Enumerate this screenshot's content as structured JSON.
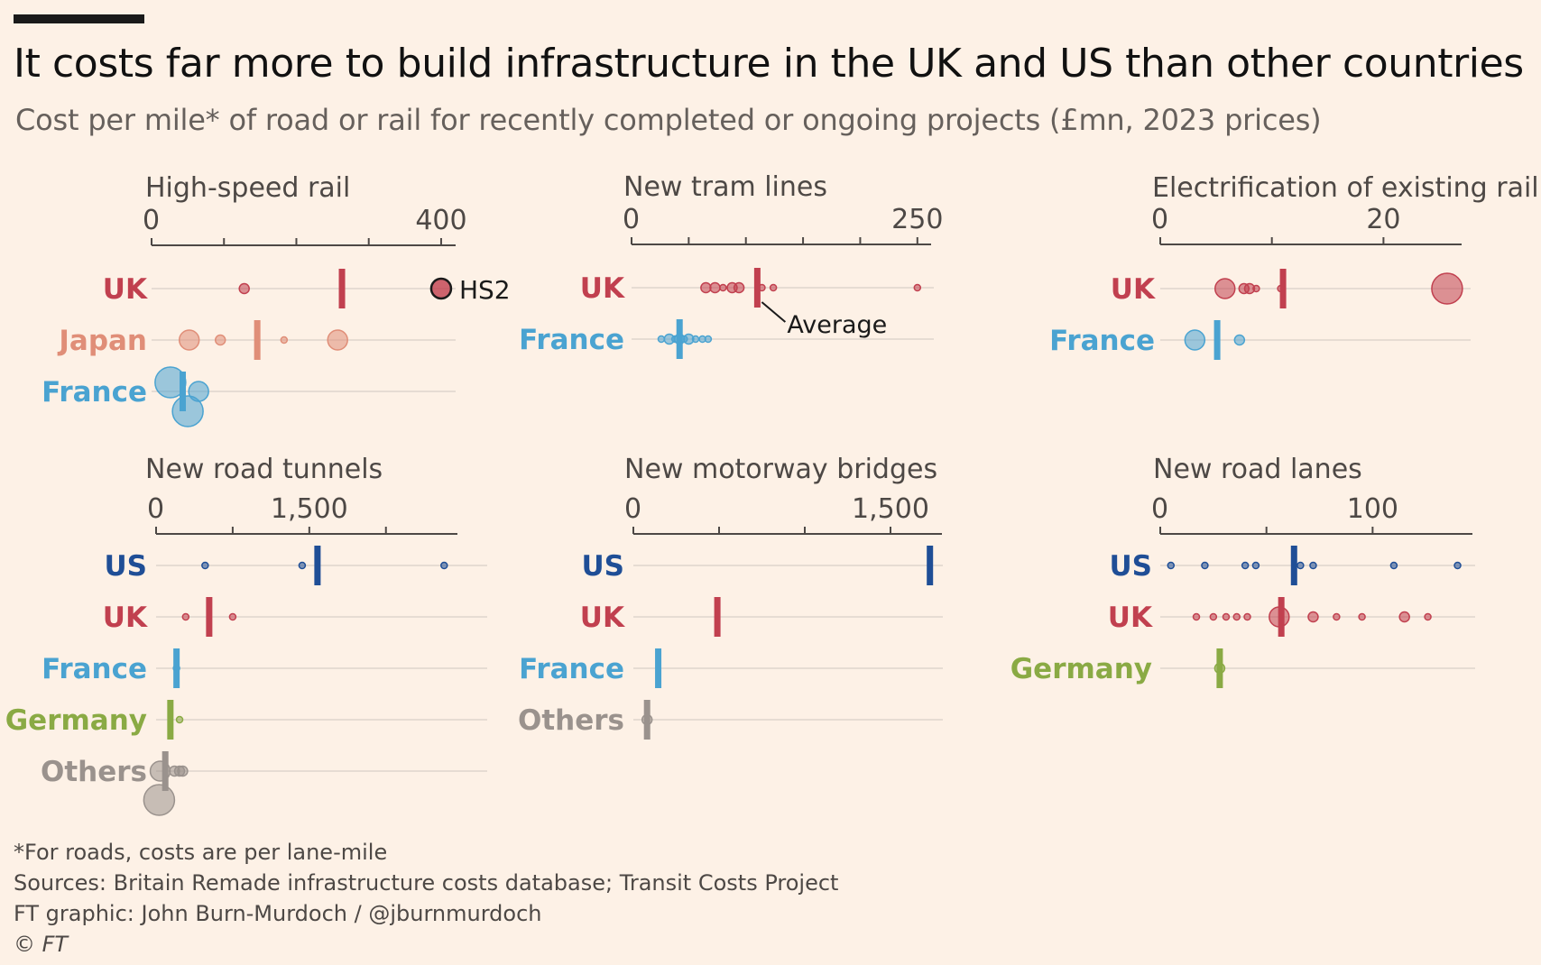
{
  "title": "It costs far more to build infrastructure in the UK and US than other countries",
  "subtitle": "Cost per mile* of road or rail for recently completed or ongoing projects (£mn, 2023 prices)",
  "footnotes": {
    "note": "*For roads, costs are per lane-mile",
    "sources": "Sources: Britain Remade infrastructure costs database; Transit Costs Project",
    "credit": "FT graphic: John Burn-Murdoch / @jburnmurdoch",
    "copyright": "© FT"
  },
  "colors": {
    "UK": "#c1404f",
    "US": "#1f4e96",
    "Japan": "#e08e78",
    "France": "#4aa3d1",
    "Germany": "#8aaa44",
    "Others": "#9a928d",
    "axis": "#4d4845",
    "background": "#fdf1e6"
  },
  "chart_data": [
    {
      "type": "scatter",
      "title": "High-speed rail",
      "xlim": [
        0,
        420
      ],
      "ticks": [
        0,
        100,
        200,
        300,
        400
      ],
      "tick_labels": [
        "0",
        "",
        "",
        "",
        "400"
      ],
      "annotation": {
        "text": "HS2",
        "country": "UK",
        "x": 400
      },
      "series": [
        {
          "name": "UK",
          "average": 263,
          "points": [
            {
              "x": 128,
              "size": "s"
            },
            {
              "x": 400,
              "size": "m",
              "highlight": true
            }
          ]
        },
        {
          "name": "Japan",
          "average": 146,
          "points": [
            {
              "x": 52,
              "size": "m"
            },
            {
              "x": 95,
              "size": "s"
            },
            {
              "x": 183,
              "size": "xs"
            },
            {
              "x": 257,
              "size": "m"
            }
          ]
        },
        {
          "name": "France",
          "average": 43,
          "points": [
            {
              "x": 26,
              "size": "l"
            },
            {
              "x": 65,
              "size": "m"
            },
            {
              "x": 50,
              "size": "l"
            }
          ]
        }
      ]
    },
    {
      "type": "scatter",
      "title": "New tram lines",
      "xlim": [
        0,
        262
      ],
      "ticks": [
        0,
        50,
        100,
        150,
        200,
        250
      ],
      "tick_labels": [
        "0",
        "",
        "",
        "",
        "",
        "250"
      ],
      "annotation": {
        "text": "Average",
        "country": "UK",
        "x": 110
      },
      "series": [
        {
          "name": "UK",
          "average": 110,
          "points": [
            {
              "x": 65,
              "size": "s"
            },
            {
              "x": 73,
              "size": "s"
            },
            {
              "x": 80,
              "size": "xs"
            },
            {
              "x": 88,
              "size": "s"
            },
            {
              "x": 94,
              "size": "s"
            },
            {
              "x": 114,
              "size": "xs"
            },
            {
              "x": 124,
              "size": "xs"
            },
            {
              "x": 250,
              "size": "xs"
            }
          ]
        },
        {
          "name": "France",
          "average": 42,
          "points": [
            {
              "x": 26,
              "size": "xs"
            },
            {
              "x": 33,
              "size": "s"
            },
            {
              "x": 38,
              "size": "xs"
            },
            {
              "x": 42,
              "size": "s"
            },
            {
              "x": 46,
              "size": "xs"
            },
            {
              "x": 50,
              "size": "s"
            },
            {
              "x": 56,
              "size": "xs"
            },
            {
              "x": 62,
              "size": "xs"
            },
            {
              "x": 67,
              "size": "xs"
            }
          ]
        }
      ]
    },
    {
      "type": "scatter",
      "title": "Electrification of existing rail",
      "xlim": [
        0,
        27
      ],
      "ticks": [
        0,
        10,
        20
      ],
      "tick_labels": [
        "0",
        "20"
      ],
      "tick_label_values": [
        0,
        20
      ],
      "series": [
        {
          "name": "UK",
          "average": 11,
          "points": [
            {
              "x": 5.8,
              "size": "m"
            },
            {
              "x": 7.5,
              "size": "s"
            },
            {
              "x": 8,
              "size": "s"
            },
            {
              "x": 8.6,
              "size": "xs"
            },
            {
              "x": 10.8,
              "size": "xs"
            },
            {
              "x": 25.7,
              "size": "l"
            }
          ]
        },
        {
          "name": "France",
          "average": 5.1,
          "points": [
            {
              "x": 3.1,
              "size": "m"
            },
            {
              "x": 7.1,
              "size": "s"
            }
          ]
        }
      ]
    },
    {
      "type": "scatter",
      "title": "New road tunnels",
      "xlim": [
        0,
        2950
      ],
      "ticks": [
        0,
        750,
        1500,
        2250
      ],
      "tick_labels": [
        "0",
        "",
        "1,500",
        ""
      ],
      "series": [
        {
          "name": "US",
          "average": 1580,
          "points": [
            {
              "x": 480,
              "size": "xs"
            },
            {
              "x": 1430,
              "size": "xs"
            },
            {
              "x": 2820,
              "size": "xs"
            }
          ]
        },
        {
          "name": "UK",
          "average": 520,
          "points": [
            {
              "x": 290,
              "size": "xs"
            },
            {
              "x": 750,
              "size": "xs"
            }
          ]
        },
        {
          "name": "France",
          "average": 200,
          "points": [
            {
              "x": 200,
              "size": "xs"
            }
          ]
        },
        {
          "name": "Germany",
          "average": 140,
          "points": [
            {
              "x": 230,
              "size": "xs"
            }
          ]
        },
        {
          "name": "Others",
          "average": 90,
          "points": [
            {
              "x": 40,
              "size": "m"
            },
            {
              "x": 180,
              "size": "s"
            },
            {
              "x": 260,
              "size": "s"
            },
            {
              "x": 230,
              "size": "s"
            },
            {
              "x": 30,
              "size": "l"
            }
          ]
        }
      ]
    },
    {
      "type": "scatter",
      "title": "New motorway bridges",
      "xlim": [
        0,
        1800
      ],
      "ticks": [
        0,
        500,
        1000,
        1500
      ],
      "tick_labels": [
        "0",
        "",
        "",
        "1,500"
      ],
      "series": [
        {
          "name": "US",
          "average": 1730,
          "points": []
        },
        {
          "name": "UK",
          "average": 490,
          "points": []
        },
        {
          "name": "France",
          "average": 145,
          "points": []
        },
        {
          "name": "Others",
          "average": 80,
          "points": [
            {
              "x": 80,
              "size": "s"
            }
          ]
        }
      ]
    },
    {
      "type": "scatter",
      "title": "New road lanes",
      "xlim": [
        0,
        147
      ],
      "ticks": [
        0,
        50,
        100
      ],
      "tick_labels": [
        "0",
        "100"
      ],
      "tick_label_values": [
        0,
        100
      ],
      "series": [
        {
          "name": "US",
          "average": 63,
          "points": [
            {
              "x": 5,
              "size": "xs"
            },
            {
              "x": 21,
              "size": "xs"
            },
            {
              "x": 40,
              "size": "xs"
            },
            {
              "x": 45,
              "size": "xs"
            },
            {
              "x": 66,
              "size": "xs"
            },
            {
              "x": 72,
              "size": "xs"
            },
            {
              "x": 110,
              "size": "xs"
            },
            {
              "x": 140,
              "size": "xs"
            }
          ]
        },
        {
          "name": "UK",
          "average": 57,
          "points": [
            {
              "x": 17,
              "size": "xs"
            },
            {
              "x": 25,
              "size": "xs"
            },
            {
              "x": 31,
              "size": "xs"
            },
            {
              "x": 36,
              "size": "xs"
            },
            {
              "x": 41,
              "size": "xs"
            },
            {
              "x": 56,
              "size": "m"
            },
            {
              "x": 72,
              "size": "s"
            },
            {
              "x": 83,
              "size": "xs"
            },
            {
              "x": 95,
              "size": "xs"
            },
            {
              "x": 115,
              "size": "s"
            },
            {
              "x": 126,
              "size": "xs"
            }
          ]
        },
        {
          "name": "Germany",
          "average": 28,
          "points": [
            {
              "x": 28,
              "size": "s"
            }
          ]
        }
      ]
    }
  ]
}
